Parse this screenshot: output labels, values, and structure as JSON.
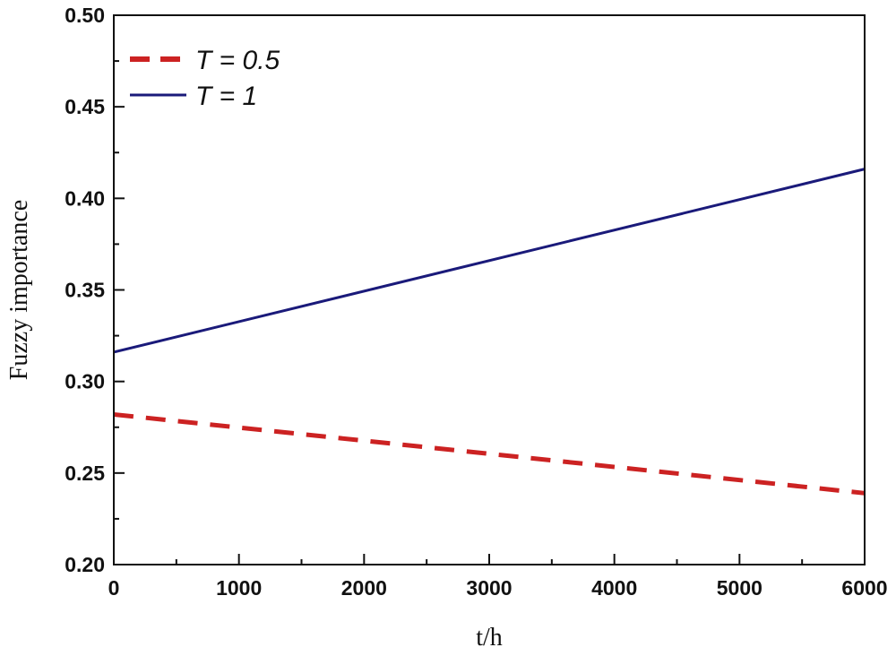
{
  "chart_data": {
    "type": "line",
    "xlabel": "t/h",
    "ylabel": "Fuzzy importance",
    "xlim": [
      0,
      6000
    ],
    "ylim": [
      0.2,
      0.5
    ],
    "x_ticks": [
      0,
      1000,
      2000,
      3000,
      4000,
      5000,
      6000
    ],
    "y_ticks": [
      "0.20",
      "0.25",
      "0.30",
      "0.35",
      "0.40",
      "0.45",
      "0.50"
    ],
    "grid": false,
    "legend_position": "top-left",
    "series": [
      {
        "name": "T = 0.5",
        "x": [
          0,
          6000
        ],
        "y": [
          0.282,
          0.239
        ],
        "color": "#cc2222",
        "style": "dashed"
      },
      {
        "name": "T = 1",
        "x": [
          0,
          6000
        ],
        "y": [
          0.316,
          0.416
        ],
        "color": "#1a1a7a",
        "style": "solid"
      }
    ]
  }
}
